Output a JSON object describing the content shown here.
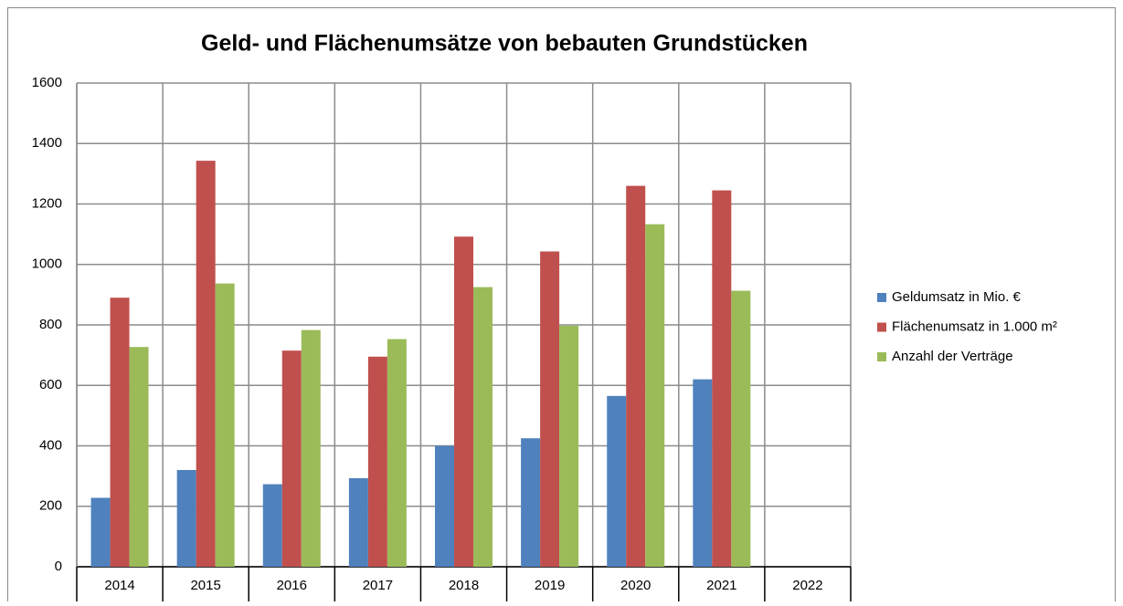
{
  "chart_data": {
    "type": "bar",
    "title": "Geld- und Flächenumsätze von bebauten Grundstücken",
    "categories": [
      "2014",
      "2015",
      "2016",
      "2017",
      "2018",
      "2019",
      "2020",
      "2021",
      "2022"
    ],
    "series": [
      {
        "name": "Geldumsatz in Mio. €",
        "color": "#4f81bd",
        "values": [
          228,
          320,
          273,
          293,
          400,
          425,
          565,
          620,
          null
        ]
      },
      {
        "name": "Flächenumsatz in 1.000 m²",
        "color": "#c0504d",
        "values": [
          890,
          1343,
          715,
          695,
          1092,
          1043,
          1260,
          1245,
          null
        ]
      },
      {
        "name": "Anzahl der Verträge",
        "color": "#9bbb59",
        "values": [
          727,
          937,
          783,
          753,
          925,
          797,
          1133,
          913,
          null
        ]
      }
    ],
    "ylim": [
      0,
      1600
    ],
    "yticks": [
      0,
      200,
      400,
      600,
      800,
      1000,
      1200,
      1400,
      1600
    ],
    "grid": true,
    "legend": "right"
  }
}
